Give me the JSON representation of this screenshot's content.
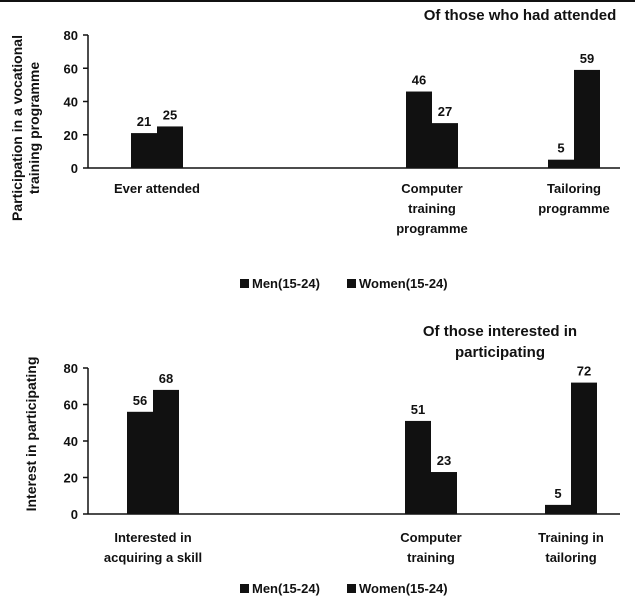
{
  "chart_data": [
    {
      "type": "bar",
      "title": "Of those who had attended",
      "ylabel_lines": [
        "Participation in a vocational",
        "training programme"
      ],
      "categories": [
        [
          "Ever attended"
        ],
        [
          "Computer",
          "training",
          "programme"
        ],
        [
          "Tailoring",
          "programme"
        ]
      ],
      "series": [
        {
          "name": "Men(15-24)",
          "values": [
            21,
            46,
            5
          ],
          "color": "#111111"
        },
        {
          "name": "Women(15-24)",
          "values": [
            25,
            27,
            59
          ],
          "color": "#111111"
        }
      ],
      "ylim": [
        0,
        80
      ],
      "yticks": [
        0,
        20,
        40,
        60,
        80
      ],
      "grid": false,
      "legend": "bottom"
    },
    {
      "type": "bar",
      "title_lines": [
        "Of those interested in",
        "participating"
      ],
      "ylabel_lines": [
        "Interest  in participating"
      ],
      "categories": [
        [
          "Interested in",
          "acquiring a skill"
        ],
        [
          "Computer",
          "training"
        ],
        [
          "Training in",
          "tailoring"
        ]
      ],
      "series": [
        {
          "name": "Men(15-24)",
          "values": [
            56,
            51,
            5
          ],
          "color": "#111111"
        },
        {
          "name": "Women(15-24)",
          "values": [
            68,
            23,
            72
          ],
          "color": "#111111"
        }
      ],
      "ylim": [
        0,
        80
      ],
      "yticks": [
        0,
        20,
        40,
        60,
        80
      ],
      "grid": false,
      "legend": "bottom"
    }
  ]
}
